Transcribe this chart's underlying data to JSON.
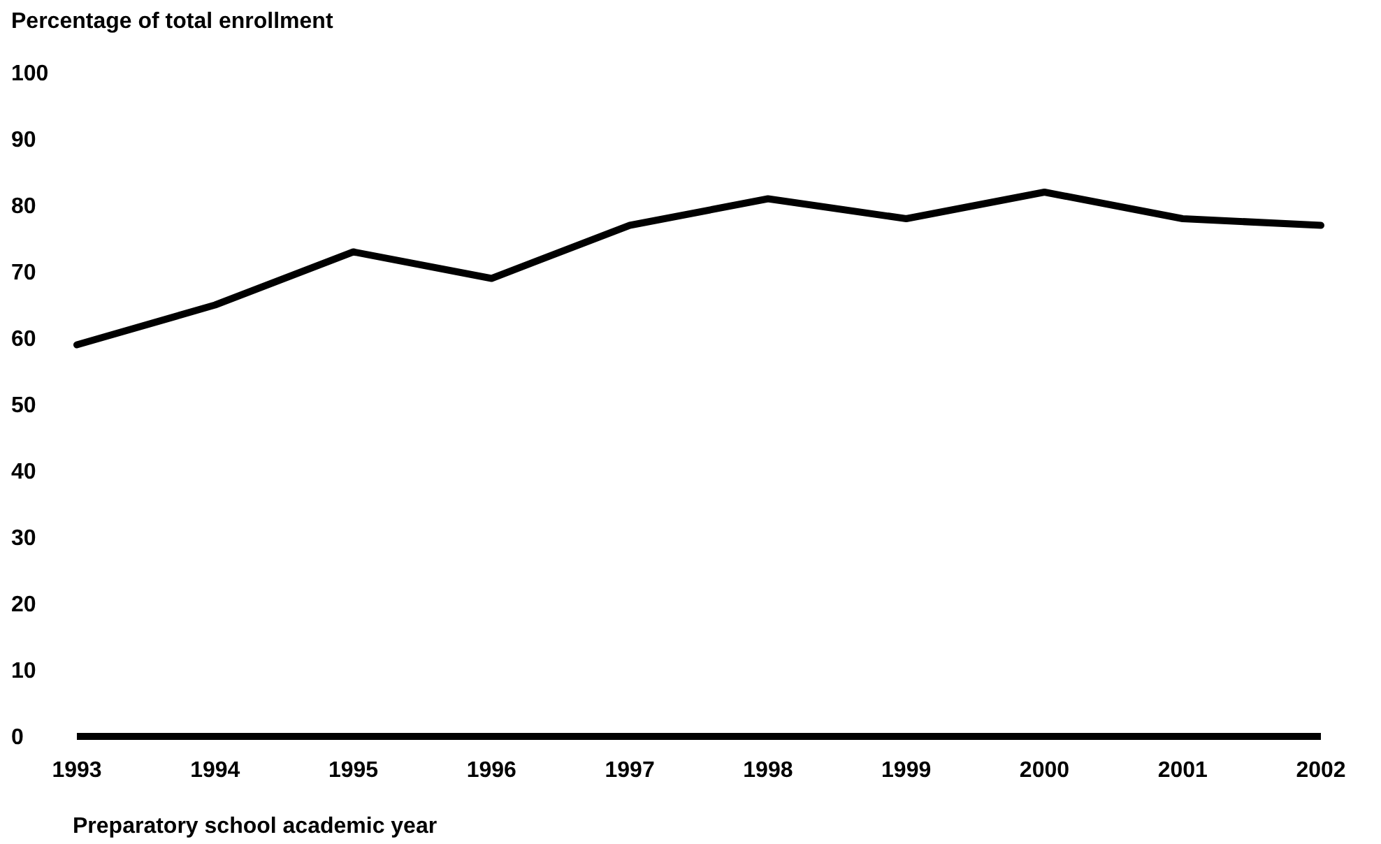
{
  "chart_data": {
    "type": "line",
    "ylabel": "Percentage of total enrollment",
    "xlabel": "Preparatory school academic year",
    "x": [
      1993,
      1994,
      1995,
      1996,
      1997,
      1998,
      1999,
      2000,
      2001,
      2002
    ],
    "series": [
      {
        "color": "#000000",
        "values": [
          59,
          65,
          73,
          69,
          77,
          81,
          78,
          82,
          78,
          77
        ]
      }
    ],
    "xlim": [
      1993,
      2002
    ],
    "xticks": [
      1993,
      1994,
      1995,
      1996,
      1997,
      1998,
      1999,
      2000,
      2001,
      2002
    ],
    "ylim": [
      0,
      100
    ],
    "yticks": [
      0,
      10,
      20,
      30,
      40,
      50,
      60,
      70,
      80,
      90,
      100
    ],
    "marker": "none",
    "line_style": "solid"
  }
}
